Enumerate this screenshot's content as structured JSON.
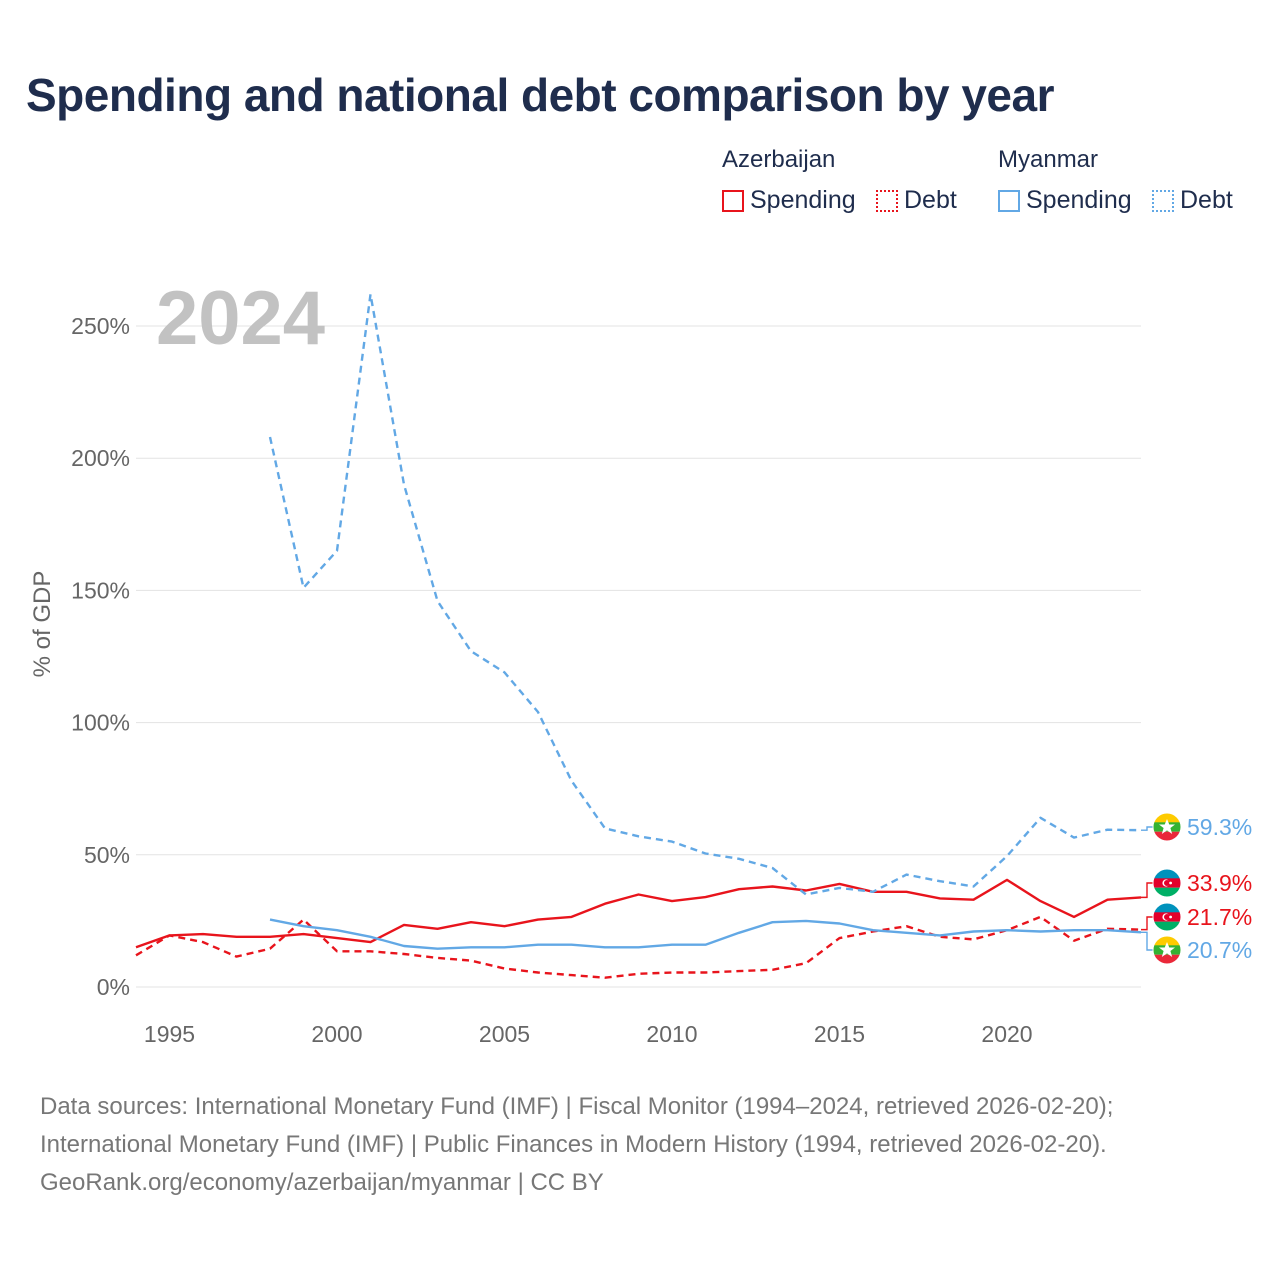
{
  "title": "Spending and national debt comparison by year",
  "year_watermark": "2024",
  "colors": {
    "azerbaijan": "#e8141c",
    "myanmar": "#62a8e5",
    "title": "#1f2d4d"
  },
  "legend": {
    "groups": [
      {
        "country": "Azerbaijan",
        "items": [
          {
            "label": "Spending",
            "style": "solid"
          },
          {
            "label": "Debt",
            "style": "dotted"
          }
        ]
      },
      {
        "country": "Myanmar",
        "items": [
          {
            "label": "Spending",
            "style": "solid"
          },
          {
            "label": "Debt",
            "style": "dotted"
          }
        ]
      }
    ]
  },
  "chart_data": {
    "type": "line",
    "title": "Spending and national debt comparison by year",
    "ylabel": "% of GDP",
    "xlabel": "",
    "xlim": [
      1994,
      2024
    ],
    "ylim": [
      0,
      265
    ],
    "yticks": [
      0,
      50,
      100,
      150,
      200,
      250
    ],
    "ytick_labels": [
      "0%",
      "50%",
      "100%",
      "150%",
      "200%",
      "250%"
    ],
    "xticks": [
      1995,
      2000,
      2005,
      2010,
      2015,
      2020
    ],
    "xtick_labels": [
      "1995",
      "2000",
      "2005",
      "2010",
      "2015",
      "2020"
    ],
    "grid": true,
    "series": [
      {
        "name": "Azerbaijan Spending",
        "country": "Azerbaijan",
        "measure": "Spending",
        "dash": "solid",
        "x": [
          1994,
          1995,
          1996,
          1997,
          1998,
          1999,
          2000,
          2001,
          2002,
          2003,
          2004,
          2005,
          2006,
          2007,
          2008,
          2009,
          2010,
          2011,
          2012,
          2013,
          2014,
          2015,
          2016,
          2017,
          2018,
          2019,
          2020,
          2021,
          2022,
          2023,
          2024
        ],
        "values": [
          15,
          19.5,
          20,
          19,
          19,
          20,
          18.5,
          17,
          23.5,
          22,
          24.5,
          23,
          25.5,
          26.5,
          31.5,
          35,
          32.5,
          34,
          37,
          38,
          36.5,
          39,
          36,
          36,
          33.5,
          33,
          40.5,
          32.5,
          26.5,
          33,
          33.9
        ]
      },
      {
        "name": "Azerbaijan Debt",
        "country": "Azerbaijan",
        "measure": "Debt",
        "dash": "dashed",
        "x": [
          1994,
          1995,
          1996,
          1997,
          1998,
          1999,
          2000,
          2001,
          2002,
          2003,
          2004,
          2005,
          2006,
          2007,
          2008,
          2009,
          2010,
          2011,
          2012,
          2013,
          2014,
          2015,
          2016,
          2017,
          2018,
          2019,
          2020,
          2021,
          2022,
          2023,
          2024
        ],
        "values": [
          12,
          19.5,
          17,
          11.5,
          14.5,
          25.5,
          13.5,
          13.5,
          12.5,
          11,
          10,
          7,
          5.5,
          4.5,
          3.5,
          5,
          5.5,
          5.5,
          6,
          6.5,
          9,
          18.5,
          21,
          23,
          19,
          18,
          21.5,
          26.5,
          17.5,
          22,
          21.7
        ]
      },
      {
        "name": "Myanmar Spending",
        "country": "Myanmar",
        "measure": "Spending",
        "dash": "solid",
        "x": [
          1998,
          1999,
          2000,
          2001,
          2002,
          2003,
          2004,
          2005,
          2006,
          2007,
          2008,
          2009,
          2010,
          2011,
          2012,
          2013,
          2014,
          2015,
          2016,
          2017,
          2018,
          2019,
          2020,
          2021,
          2022,
          2023,
          2024
        ],
        "values": [
          25.5,
          23,
          21.5,
          19,
          15.5,
          14.5,
          15,
          15,
          16,
          16,
          15,
          15,
          16,
          16,
          20.5,
          24.5,
          25,
          24,
          21.5,
          20.5,
          19.5,
          21,
          21.5,
          21,
          21.5,
          21.5,
          20.7
        ]
      },
      {
        "name": "Myanmar Debt",
        "country": "Myanmar",
        "measure": "Debt",
        "dash": "dashed",
        "x": [
          1998,
          1999,
          2000,
          2001,
          2002,
          2003,
          2004,
          2005,
          2006,
          2007,
          2008,
          2009,
          2010,
          2011,
          2012,
          2013,
          2014,
          2015,
          2016,
          2017,
          2018,
          2019,
          2020,
          2021,
          2022,
          2023,
          2024
        ],
        "values": [
          208,
          151,
          165,
          262,
          190,
          146,
          127,
          119,
          104,
          78,
          60,
          57,
          55,
          50.5,
          48.5,
          45,
          35,
          37.5,
          36,
          42.5,
          40,
          38,
          49.5,
          64,
          56.5,
          59.5,
          59.3
        ]
      }
    ],
    "end_labels": [
      {
        "series": "Myanmar Debt",
        "text": "59.3%",
        "flag": "myanmar"
      },
      {
        "series": "Azerbaijan Spending",
        "text": "33.9%",
        "flag": "azerbaijan"
      },
      {
        "series": "Azerbaijan Debt",
        "text": "21.7%",
        "flag": "azerbaijan"
      },
      {
        "series": "Myanmar Spending",
        "text": "20.7%",
        "flag": "myanmar"
      }
    ]
  },
  "sources": [
    "Data sources: International Monetary Fund (IMF) | Fiscal Monitor (1994–2024, retrieved 2026-02-20);",
    "International Monetary Fund (IMF) | Public Finances in Modern History (1994, retrieved 2026-02-20).",
    "GeoRank.org/economy/azerbaijan/myanmar | CC BY"
  ]
}
